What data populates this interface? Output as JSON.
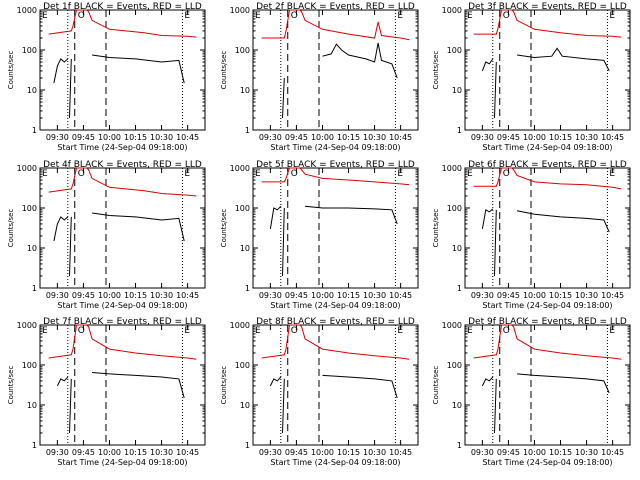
{
  "colors": {
    "events": "#000000",
    "lld": "#e00000",
    "axis": "#000000",
    "background": "#ffffff"
  },
  "common": {
    "ylabel": "Counts/sec",
    "xlabel": "Start Time (24-Sep-04 09:18:00)",
    "ylim": [
      1,
      1000
    ],
    "yscale": "log",
    "y_ticks": [
      "1",
      "10",
      "100",
      "1000"
    ],
    "x_ticks": [
      "09:30",
      "09:45",
      "10:00",
      "10:15",
      "10:30",
      "10:45"
    ],
    "marker_labels": {
      "start": "E",
      "circle": "O",
      "end": "E"
    }
  },
  "chart_data": [
    {
      "type": "line",
      "title": "Det 1f BLACK = Events, RED = LLD",
      "markers": {
        "dotted_start": "09:36",
        "dashed_a": "09:40",
        "dashed_b": "09:58",
        "dotted_end": "10:42"
      },
      "series": [
        {
          "name": "LLD",
          "color": "#e00000",
          "segments": [
            {
              "x": [
                "09:25",
                "09:38",
                "09:39",
                "09:41",
                "09:47",
                "09:48",
                "09:50",
                "10:00",
                "10:20",
                "10:30",
                "10:45",
                "10:50"
              ],
              "y": [
                250,
                300,
                400,
                1000,
                1000,
                900,
                550,
                330,
                270,
                230,
                220,
                210
              ]
            }
          ]
        },
        {
          "name": "Events",
          "color": "#000000",
          "segments": [
            {
              "x": [
                "09:28",
                "09:30",
                "09:32",
                "09:34",
                "09:36"
              ],
              "y": [
                15,
                40,
                60,
                50,
                60
              ]
            },
            {
              "x": [
                "09:37",
                "09:38"
              ],
              "y": [
                2,
                60
              ]
            },
            {
              "x": [
                "09:50",
                "10:00",
                "10:15",
                "10:30",
                "10:40",
                "10:43"
              ],
              "y": [
                75,
                65,
                60,
                50,
                55,
                15
              ]
            }
          ]
        }
      ]
    },
    {
      "type": "line",
      "title": "Det 2f BLACK = Events, RED = LLD",
      "markers": {
        "dotted_start": "09:36",
        "dashed_a": "09:40",
        "dashed_b": "09:58",
        "dotted_end": "10:42"
      },
      "series": [
        {
          "name": "LLD",
          "color": "#e00000",
          "segments": [
            {
              "x": [
                "09:25",
                "09:38",
                "09:39",
                "09:41",
                "09:47",
                "09:48",
                "09:50",
                "10:00",
                "10:15",
                "10:30",
                "10:32",
                "10:34",
                "10:45",
                "10:50"
              ],
              "y": [
                200,
                200,
                300,
                1000,
                1000,
                900,
                550,
                330,
                250,
                200,
                500,
                230,
                200,
                180
              ]
            }
          ]
        },
        {
          "name": "Events",
          "color": "#000000",
          "segments": [
            {
              "x": [
                "09:37",
                "09:38"
              ],
              "y": [
                2,
                20
              ]
            },
            {
              "x": [
                "10:00",
                "10:05",
                "10:08",
                "10:11",
                "10:15",
                "10:25",
                "10:30",
                "10:32",
                "10:34",
                "10:40",
                "10:43"
              ],
              "y": [
                70,
                80,
                140,
                100,
                75,
                60,
                50,
                150,
                55,
                45,
                20
              ]
            }
          ]
        }
      ]
    },
    {
      "type": "line",
      "title": "Det 3f BLACK = Events, RED = LLD",
      "markers": {
        "dotted_start": "09:36",
        "dashed_a": "09:40",
        "dashed_b": "09:58",
        "dotted_end": "10:42"
      },
      "series": [
        {
          "name": "LLD",
          "color": "#e00000",
          "segments": [
            {
              "x": [
                "09:25",
                "09:38",
                "09:39",
                "09:41",
                "09:47",
                "09:48",
                "09:50",
                "10:00",
                "10:15",
                "10:30",
                "10:45",
                "10:50"
              ],
              "y": [
                250,
                250,
                350,
                1000,
                1000,
                900,
                550,
                330,
                270,
                230,
                220,
                210
              ]
            }
          ]
        },
        {
          "name": "Events",
          "color": "#000000",
          "segments": [
            {
              "x": [
                "09:30",
                "09:32",
                "09:34",
                "09:36"
              ],
              "y": [
                30,
                50,
                45,
                60
              ]
            },
            {
              "x": [
                "09:37",
                "09:38"
              ],
              "y": [
                2,
                50
              ]
            },
            {
              "x": [
                "09:50",
                "10:00",
                "10:10",
                "10:13",
                "10:16",
                "10:30",
                "10:40",
                "10:43"
              ],
              "y": [
                75,
                65,
                70,
                110,
                70,
                60,
                55,
                30
              ]
            }
          ]
        }
      ]
    },
    {
      "type": "line",
      "title": "Det 4f BLACK = Events, RED = LLD",
      "markers": {
        "dotted_start": "09:36",
        "dashed_a": "09:40",
        "dashed_b": "09:58",
        "dotted_end": "10:42"
      },
      "series": [
        {
          "name": "LLD",
          "color": "#e00000",
          "segments": [
            {
              "x": [
                "09:25",
                "09:38",
                "09:39",
                "09:41",
                "09:47",
                "09:48",
                "09:50",
                "10:00",
                "10:20",
                "10:30",
                "10:45",
                "10:50"
              ],
              "y": [
                250,
                300,
                400,
                1000,
                1000,
                900,
                550,
                330,
                270,
                230,
                210,
                200
              ]
            }
          ]
        },
        {
          "name": "Events",
          "color": "#000000",
          "segments": [
            {
              "x": [
                "09:28",
                "09:30",
                "09:32",
                "09:34",
                "09:36"
              ],
              "y": [
                15,
                40,
                60,
                50,
                60
              ]
            },
            {
              "x": [
                "09:37",
                "09:38"
              ],
              "y": [
                2,
                60
              ]
            },
            {
              "x": [
                "09:50",
                "10:00",
                "10:15",
                "10:30",
                "10:40",
                "10:43"
              ],
              "y": [
                75,
                65,
                60,
                50,
                55,
                15
              ]
            }
          ]
        }
      ]
    },
    {
      "type": "line",
      "title": "Det 5f BLACK = Events, RED = LLD",
      "markers": {
        "dotted_start": "09:36",
        "dashed_a": "09:40",
        "dashed_b": "09:58",
        "dotted_end": "10:42"
      },
      "series": [
        {
          "name": "LLD",
          "color": "#e00000",
          "segments": [
            {
              "x": [
                "09:25",
                "09:38",
                "09:39",
                "09:41",
                "09:47",
                "09:48",
                "09:50",
                "10:00",
                "10:15",
                "10:30",
                "10:45",
                "10:50"
              ],
              "y": [
                450,
                450,
                550,
                1000,
                1000,
                900,
                700,
                550,
                500,
                450,
                400,
                380
              ]
            }
          ]
        },
        {
          "name": "Events",
          "color": "#000000",
          "segments": [
            {
              "x": [
                "09:30",
                "09:32",
                "09:34",
                "09:36"
              ],
              "y": [
                30,
                100,
                90,
                110
              ]
            },
            {
              "x": [
                "09:37",
                "09:38"
              ],
              "y": [
                2,
                100
              ]
            },
            {
              "x": [
                "09:50",
                "10:00",
                "10:15",
                "10:30",
                "10:40",
                "10:43"
              ],
              "y": [
                110,
                100,
                100,
                95,
                90,
                40
              ]
            }
          ]
        }
      ]
    },
    {
      "type": "line",
      "title": "Det 6f BLACK = Events, RED = LLD",
      "markers": {
        "dotted_start": "09:36",
        "dashed_a": "09:40",
        "dashed_b": "09:58",
        "dotted_end": "10:42"
      },
      "series": [
        {
          "name": "LLD",
          "color": "#e00000",
          "segments": [
            {
              "x": [
                "09:25",
                "09:38",
                "09:39",
                "09:41",
                "09:47",
                "09:48",
                "09:50",
                "10:00",
                "10:15",
                "10:30",
                "10:45",
                "10:50"
              ],
              "y": [
                350,
                350,
                450,
                1000,
                1000,
                900,
                650,
                450,
                400,
                380,
                330,
                300
              ]
            }
          ]
        },
        {
          "name": "Events",
          "color": "#000000",
          "segments": [
            {
              "x": [
                "09:30",
                "09:32",
                "09:34",
                "09:36"
              ],
              "y": [
                30,
                90,
                80,
                95
              ]
            },
            {
              "x": [
                "09:37",
                "09:38"
              ],
              "y": [
                2,
                90
              ]
            },
            {
              "x": [
                "09:50",
                "10:00",
                "10:15",
                "10:30",
                "10:40",
                "10:43"
              ],
              "y": [
                85,
                70,
                60,
                55,
                50,
                25
              ]
            }
          ]
        }
      ]
    },
    {
      "type": "line",
      "title": "Det 7f BLACK = Events, RED = LLD",
      "markers": {
        "dotted_start": "09:36",
        "dashed_a": "09:40",
        "dashed_b": "09:58",
        "dotted_end": "10:42"
      },
      "series": [
        {
          "name": "LLD",
          "color": "#e00000",
          "segments": [
            {
              "x": [
                "09:25",
                "09:38",
                "09:39",
                "09:41",
                "09:47",
                "09:48",
                "09:50",
                "10:00",
                "10:15",
                "10:30",
                "10:45",
                "10:50"
              ],
              "y": [
                150,
                180,
                250,
                1000,
                1000,
                900,
                450,
                250,
                200,
                170,
                150,
                140
              ]
            }
          ]
        },
        {
          "name": "Events",
          "color": "#000000",
          "segments": [
            {
              "x": [
                "09:30",
                "09:32",
                "09:34",
                "09:36"
              ],
              "y": [
                30,
                45,
                40,
                50
              ]
            },
            {
              "x": [
                "09:37",
                "09:38"
              ],
              "y": [
                2,
                45
              ]
            },
            {
              "x": [
                "09:50",
                "10:00",
                "10:15",
                "10:30",
                "10:40",
                "10:43"
              ],
              "y": [
                65,
                60,
                55,
                50,
                45,
                15
              ]
            }
          ]
        }
      ]
    },
    {
      "type": "line",
      "title": "Det 8f BLACK = Events, RED = LLD",
      "markers": {
        "dotted_start": "09:36",
        "dashed_a": "09:40",
        "dashed_b": "09:58",
        "dotted_end": "10:42"
      },
      "series": [
        {
          "name": "LLD",
          "color": "#e00000",
          "segments": [
            {
              "x": [
                "09:25",
                "09:38",
                "09:39",
                "09:41",
                "09:47",
                "09:48",
                "09:50",
                "10:00",
                "10:15",
                "10:30",
                "10:45",
                "10:50"
              ],
              "y": [
                150,
                180,
                250,
                1000,
                1000,
                900,
                450,
                250,
                200,
                170,
                150,
                140
              ]
            }
          ]
        },
        {
          "name": "Events",
          "color": "#000000",
          "segments": [
            {
              "x": [
                "09:30",
                "09:32",
                "09:34",
                "09:36"
              ],
              "y": [
                30,
                45,
                40,
                50
              ]
            },
            {
              "x": [
                "09:37",
                "09:38"
              ],
              "y": [
                2,
                45
              ]
            },
            {
              "x": [
                "10:00",
                "10:15",
                "10:30",
                "10:40",
                "10:43"
              ],
              "y": [
                55,
                50,
                45,
                40,
                15
              ]
            }
          ]
        }
      ]
    },
    {
      "type": "line",
      "title": "Det 9f BLACK = Events, RED = LLD",
      "markers": {
        "dotted_start": "09:36",
        "dashed_a": "09:40",
        "dashed_b": "09:58",
        "dotted_end": "10:42"
      },
      "series": [
        {
          "name": "LLD",
          "color": "#e00000",
          "segments": [
            {
              "x": [
                "09:25",
                "09:38",
                "09:39",
                "09:41",
                "09:47",
                "09:48",
                "09:50",
                "10:00",
                "10:15",
                "10:30",
                "10:45",
                "10:50"
              ],
              "y": [
                150,
                180,
                250,
                1000,
                1000,
                900,
                450,
                250,
                200,
                170,
                150,
                140
              ]
            }
          ]
        },
        {
          "name": "Events",
          "color": "#000000",
          "segments": [
            {
              "x": [
                "09:30",
                "09:32",
                "09:34",
                "09:36"
              ],
              "y": [
                30,
                45,
                40,
                50
              ]
            },
            {
              "x": [
                "09:37",
                "09:38"
              ],
              "y": [
                2,
                45
              ]
            },
            {
              "x": [
                "09:50",
                "10:00",
                "10:15",
                "10:30",
                "10:40",
                "10:43"
              ],
              "y": [
                60,
                55,
                50,
                45,
                40,
                20
              ]
            }
          ]
        }
      ]
    }
  ]
}
